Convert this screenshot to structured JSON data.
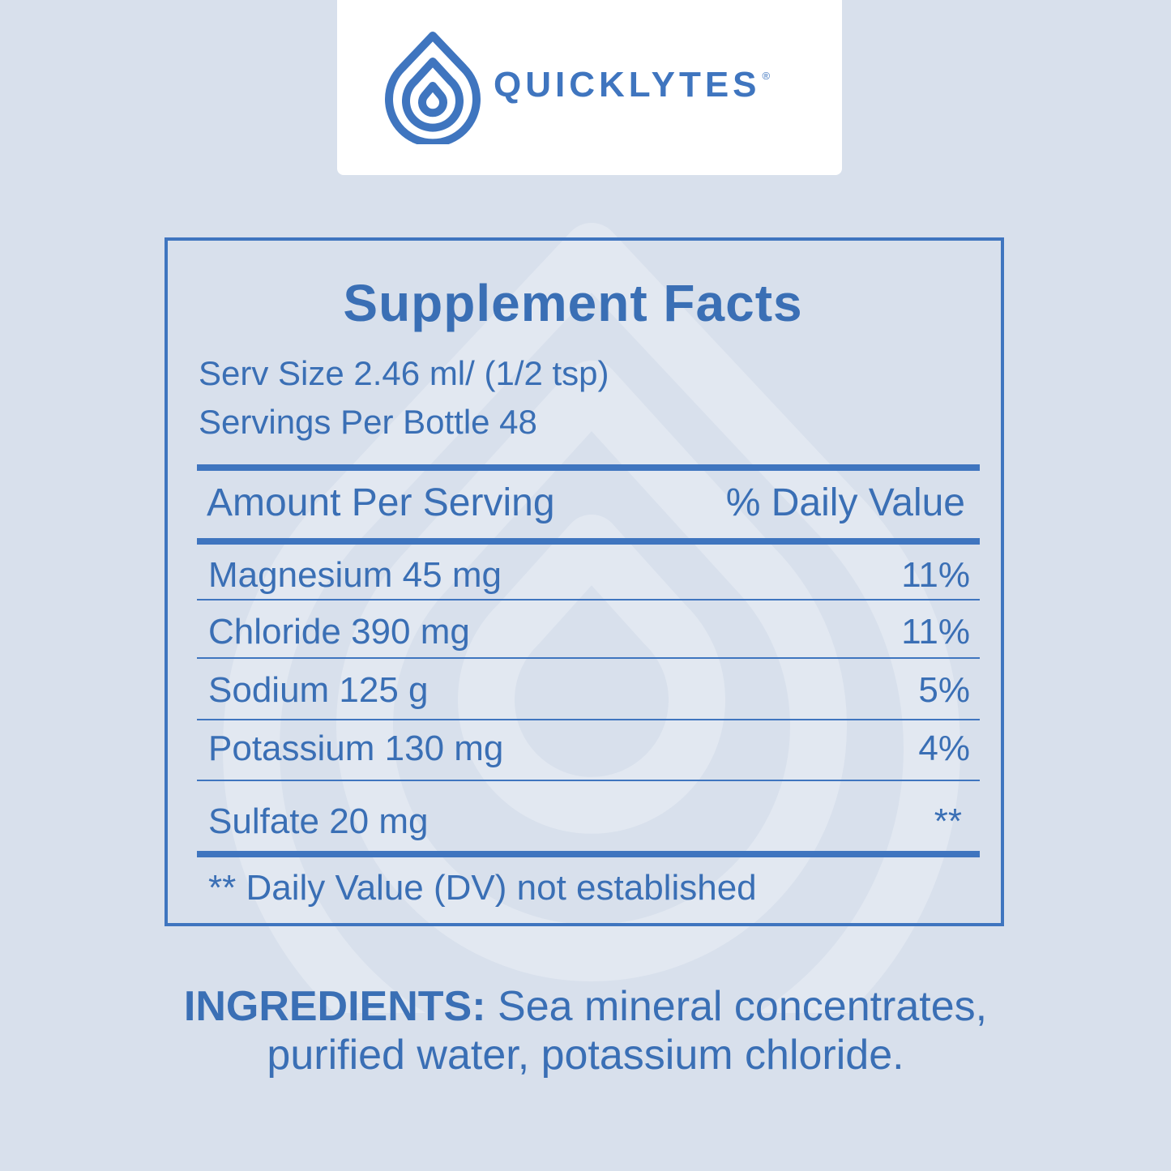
{
  "brand": {
    "name": "QUICKLYTES",
    "registered": "®"
  },
  "facts": {
    "title": "Supplement Facts",
    "serving_size": "Serv Size 2.46 ml/ (1/2 tsp)",
    "servings_per": "Servings Per Bottle 48",
    "header_left": "Amount Per Serving",
    "header_right": "% Daily Value",
    "rows": [
      {
        "name": "Magnesium 45 mg",
        "dv": "11%"
      },
      {
        "name": "Chloride 390 mg",
        "dv": "11%"
      },
      {
        "name": "Sodium 125 g",
        "dv": "5%"
      },
      {
        "name": "Potassium 130 mg",
        "dv": "4%"
      },
      {
        "name": "Sulfate 20 mg",
        "dv": "**"
      }
    ],
    "footnote": "** Daily Value (DV) not established"
  },
  "ingredients": {
    "label": "INGREDIENTS:",
    "line1": "Sea mineral concentrates,",
    "line2": "purified water, potassium chloride."
  },
  "colors": {
    "accent": "#3f75bf",
    "background": "#d8e0ec"
  }
}
